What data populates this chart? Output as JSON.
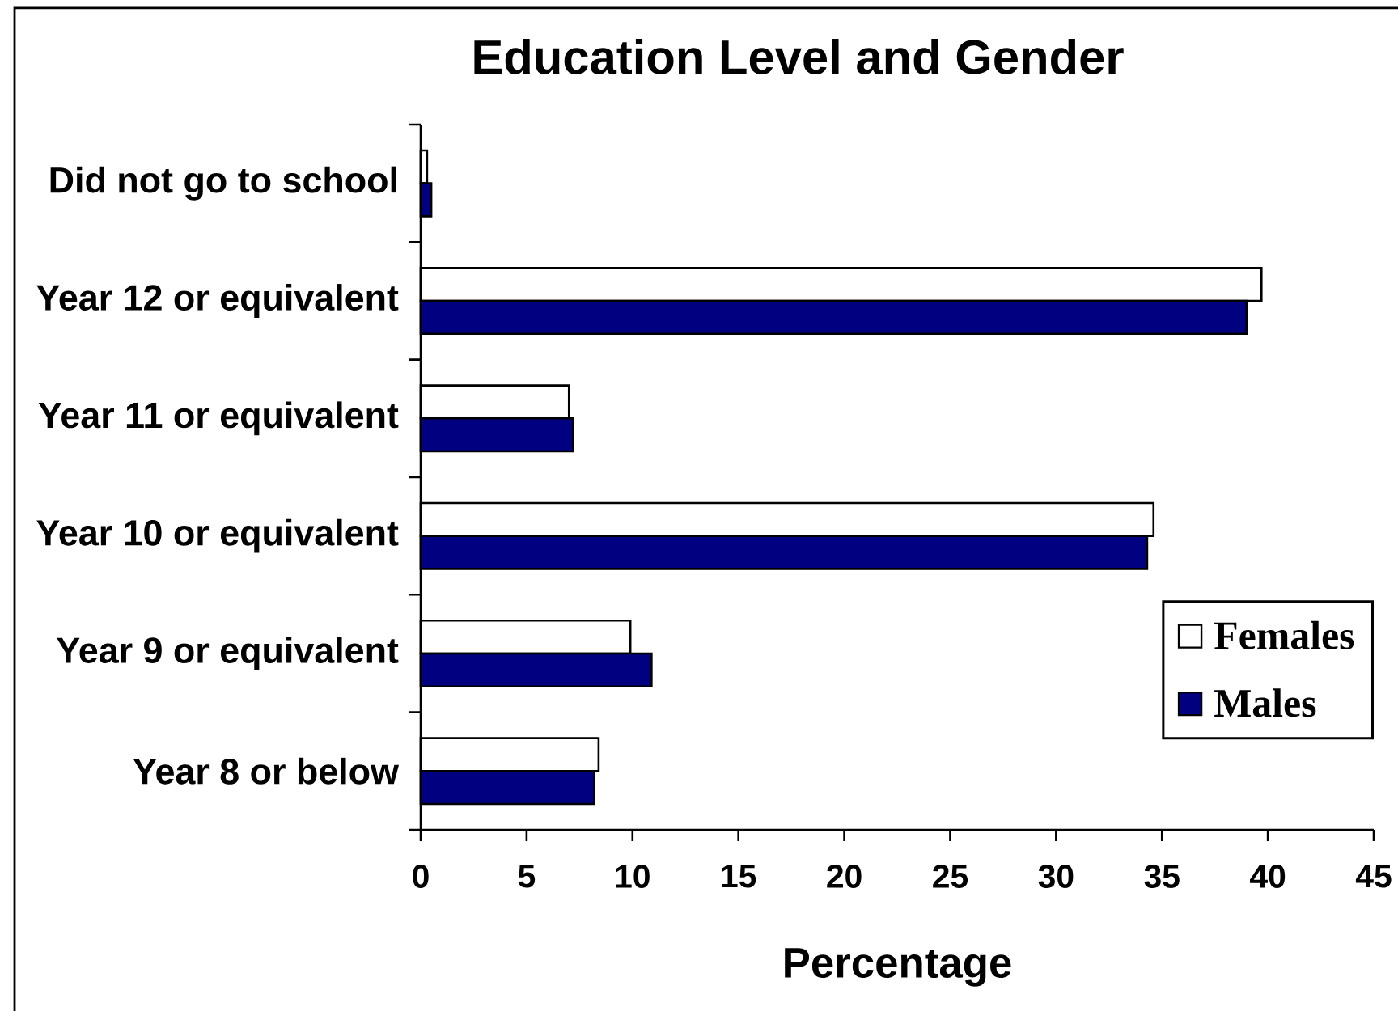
{
  "chart_data": {
    "type": "bar",
    "orientation": "horizontal",
    "title": "Education Level and Gender",
    "xlabel": "Percentage",
    "categories": [
      "Did not go to school",
      "Year 12 or equivalent",
      "Year 11 or equivalent",
      "Year 10 or equivalent",
      "Year 9 or equivalent",
      "Year 8 or below"
    ],
    "series": [
      {
        "name": "Females",
        "color": "#ffffff",
        "values": [
          0.3,
          39.7,
          7.0,
          34.6,
          9.9,
          8.4
        ]
      },
      {
        "name": "Males",
        "color": "#000080",
        "values": [
          0.5,
          39.0,
          7.2,
          34.3,
          10.9,
          8.2
        ]
      }
    ],
    "xlim": [
      0,
      45
    ],
    "xticks": [
      0,
      5,
      10,
      15,
      20,
      25,
      30,
      35,
      40,
      45
    ],
    "legend": "bottom right"
  }
}
